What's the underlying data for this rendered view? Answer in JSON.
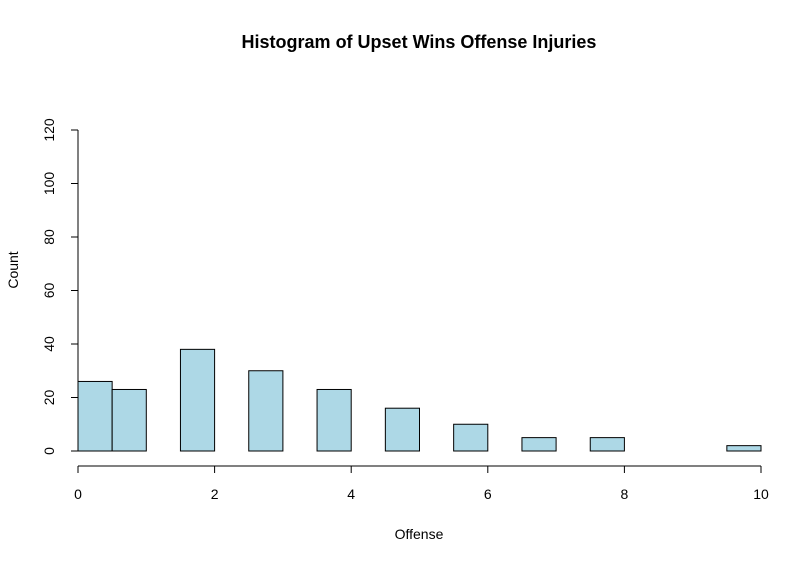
{
  "chart_data": {
    "type": "bar",
    "title": "Histogram of Upset Wins Offense Injuries",
    "xlabel": "Offense",
    "ylabel": "Count",
    "xlim": [
      0,
      10
    ],
    "ylim": [
      0,
      120
    ],
    "x_ticks": [
      "0",
      "2",
      "4",
      "6",
      "8",
      "10"
    ],
    "y_ticks": [
      "0",
      "20",
      "40",
      "60",
      "80",
      "100",
      "120"
    ],
    "bins": [
      {
        "x0": 0.0,
        "x1": 0.5,
        "count": 26
      },
      {
        "x0": 0.5,
        "x1": 1.0,
        "count": 23
      },
      {
        "x0": 1.5,
        "x1": 2.0,
        "count": 38
      },
      {
        "x0": 2.5,
        "x1": 3.0,
        "count": 30
      },
      {
        "x0": 3.5,
        "x1": 4.0,
        "count": 23
      },
      {
        "x0": 4.5,
        "x1": 5.0,
        "count": 16
      },
      {
        "x0": 5.5,
        "x1": 6.0,
        "count": 10
      },
      {
        "x0": 6.5,
        "x1": 7.0,
        "count": 5
      },
      {
        "x0": 7.5,
        "x1": 8.0,
        "count": 5
      },
      {
        "x0": 9.5,
        "x1": 10.0,
        "count": 2
      }
    ],
    "bar_fill": "#add8e6",
    "bar_stroke": "#000000",
    "grid": false,
    "legend": "none"
  }
}
